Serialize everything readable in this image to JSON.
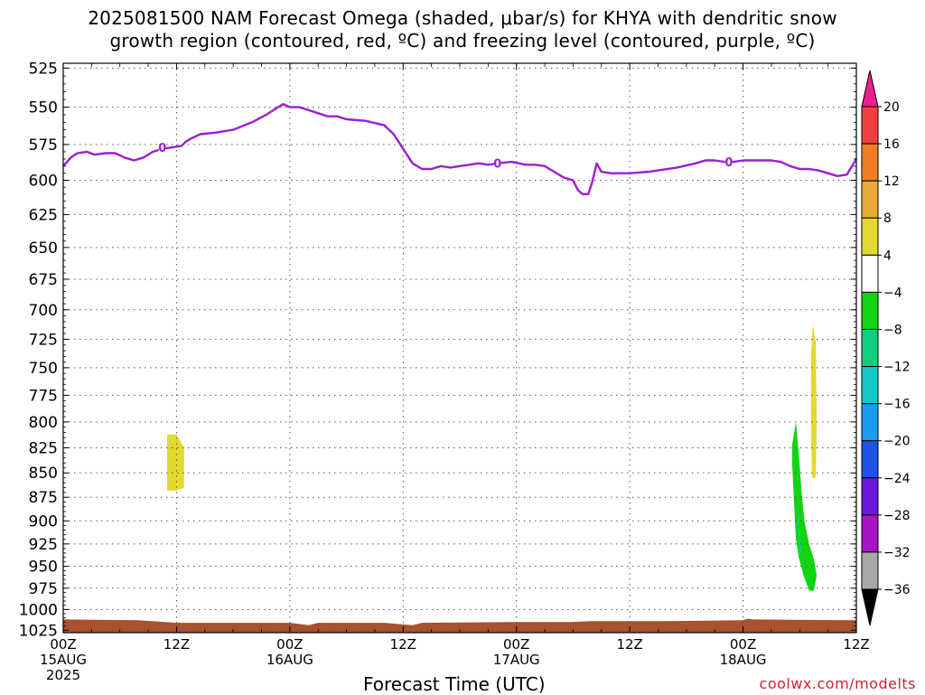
{
  "title_line1": "2025081500 NAM Forecast Omega (shaded, μbar/s) for KHYA with dendritic snow",
  "title_line2": "growth region (contoured, red, ºC) and freezing level (contoured, purple, ºC)",
  "xaxis_title": "Forecast Time (UTC)",
  "credit": "coolwx.com/modelts",
  "chart_data": {
    "type": "time-height",
    "y_axis": {
      "ticks": [
        525,
        550,
        575,
        600,
        625,
        650,
        675,
        700,
        725,
        750,
        775,
        800,
        825,
        850,
        875,
        900,
        925,
        950,
        975,
        1000,
        1025
      ],
      "scale": "log-pressure",
      "range": [
        522,
        1028
      ]
    },
    "x_axis": {
      "range_hours": [
        0,
        84
      ],
      "ticks": [
        {
          "h": 0,
          "l1": "00Z",
          "l2": "15AUG",
          "l3": "2025"
        },
        {
          "h": 12,
          "l1": "12Z",
          "l2": "",
          "l3": ""
        },
        {
          "h": 24,
          "l1": "00Z",
          "l2": "16AUG",
          "l3": ""
        },
        {
          "h": 36,
          "l1": "12Z",
          "l2": "",
          "l3": ""
        },
        {
          "h": 48,
          "l1": "00Z",
          "l2": "17AUG",
          "l3": ""
        },
        {
          "h": 60,
          "l1": "12Z",
          "l2": "",
          "l3": ""
        },
        {
          "h": 72,
          "l1": "00Z",
          "l2": "18AUG",
          "l3": ""
        },
        {
          "h": 84,
          "l1": "12Z",
          "l2": "",
          "l3": ""
        }
      ]
    },
    "grid": true,
    "colorbar": {
      "labels": [
        "20",
        "16",
        "12",
        "8",
        "4",
        "−4",
        "−8",
        "−12",
        "−16",
        "−20",
        "−24",
        "−28",
        "−32",
        "−36"
      ],
      "colors": [
        "#ec1f8e",
        "#f23e3e",
        "#f07d26",
        "#e9a935",
        "#e4d92e",
        "#ffffff",
        "#12d412",
        "#10d080",
        "#12c8c8",
        "#1a9cf0",
        "#1c54e6",
        "#6a18dc",
        "#a813c6",
        "#a8a8a8",
        "#000000"
      ]
    },
    "freezing_level": {
      "label": "0",
      "color": "#9b1fd0",
      "points": [
        [
          0,
          590
        ],
        [
          0.8,
          584
        ],
        [
          1.5,
          581
        ],
        [
          2.5,
          580
        ],
        [
          3.3,
          582
        ],
        [
          4.5,
          581
        ],
        [
          5.5,
          581
        ],
        [
          6.5,
          584
        ],
        [
          7.5,
          586
        ],
        [
          8.5,
          584
        ],
        [
          9.5,
          580
        ],
        [
          10.5,
          578
        ],
        [
          11.5,
          577
        ],
        [
          12.5,
          576
        ],
        [
          13,
          573
        ],
        [
          13.5,
          571
        ],
        [
          14.5,
          568
        ],
        [
          16,
          567
        ],
        [
          18,
          565
        ],
        [
          20,
          560
        ],
        [
          21.5,
          555
        ],
        [
          22.5,
          551
        ],
        [
          23.3,
          548
        ],
        [
          24,
          550
        ],
        [
          25,
          550
        ],
        [
          26,
          552
        ],
        [
          27,
          554
        ],
        [
          28,
          556
        ],
        [
          29,
          556
        ],
        [
          30,
          558
        ],
        [
          32,
          559
        ],
        [
          34,
          562
        ],
        [
          35,
          568
        ],
        [
          36,
          578
        ],
        [
          37,
          588
        ],
        [
          38,
          592
        ],
        [
          39,
          592
        ],
        [
          40,
          590
        ],
        [
          41,
          591
        ],
        [
          42,
          590
        ],
        [
          43,
          589
        ],
        [
          44,
          588
        ],
        [
          45,
          589
        ],
        [
          46,
          588
        ],
        [
          47.5,
          587
        ],
        [
          49,
          589
        ],
        [
          50,
          589
        ],
        [
          51,
          590
        ],
        [
          52,
          594
        ],
        [
          53,
          598
        ],
        [
          54,
          600
        ],
        [
          54.5,
          607
        ],
        [
          55,
          610
        ],
        [
          55.6,
          610
        ],
        [
          56,
          602
        ],
        [
          56.5,
          588
        ],
        [
          57,
          594
        ],
        [
          58,
          595
        ],
        [
          59,
          595
        ],
        [
          60,
          595
        ],
        [
          62,
          594
        ],
        [
          63,
          593
        ],
        [
          65,
          591
        ],
        [
          67,
          588
        ],
        [
          68,
          586
        ],
        [
          69,
          586
        ],
        [
          70,
          587
        ],
        [
          71,
          587
        ],
        [
          72,
          586
        ],
        [
          73,
          586
        ],
        [
          75,
          586
        ],
        [
          76,
          587
        ],
        [
          77,
          590
        ],
        [
          78,
          592
        ],
        [
          79,
          592
        ],
        [
          80,
          593
        ],
        [
          81,
          595
        ],
        [
          82,
          597
        ],
        [
          83,
          596
        ],
        [
          84,
          585
        ]
      ]
    },
    "shaded_regions": [
      {
        "value_band": "4 to 8",
        "color": "#e4d92e",
        "points": [
          [
            11,
            812
          ],
          [
            12,
            812
          ],
          [
            12.8,
            825
          ],
          [
            12.8,
            865
          ],
          [
            12,
            868
          ],
          [
            11,
            868
          ]
        ]
      },
      {
        "value_band": "4 to 8",
        "color": "#e4d92e",
        "points": [
          [
            79.4,
            712
          ],
          [
            79.7,
            728
          ],
          [
            79.8,
            800
          ],
          [
            79.7,
            855
          ],
          [
            79.3,
            855
          ],
          [
            79.2,
            800
          ],
          [
            79.2,
            740
          ]
        ]
      },
      {
        "value_band": "-4 to -8",
        "color": "#12d412",
        "points": [
          [
            77.6,
            800
          ],
          [
            77.9,
            830
          ],
          [
            78.2,
            870
          ],
          [
            78.5,
            900
          ],
          [
            79,
            925
          ],
          [
            79.5,
            942
          ],
          [
            79.8,
            960
          ],
          [
            79.5,
            978
          ],
          [
            79,
            978
          ],
          [
            78.4,
            960
          ],
          [
            77.9,
            940
          ],
          [
            77.6,
            920
          ],
          [
            77.4,
            880
          ],
          [
            77.2,
            840
          ],
          [
            77.2,
            822
          ]
        ]
      },
      {
        "value_band": "-8 to -12",
        "color": "#10d080",
        "points": [
          [
            77.8,
            880
          ],
          [
            78,
            910
          ],
          [
            78.2,
            935
          ],
          [
            78,
            935
          ],
          [
            77.8,
            905
          ]
        ]
      }
    ],
    "terrain": {
      "color": "#a8522e",
      "surface_pressure": [
        [
          0,
          1012
        ],
        [
          8,
          1013
        ],
        [
          12,
          1016
        ],
        [
          24,
          1016
        ],
        [
          26,
          1019
        ],
        [
          27,
          1016
        ],
        [
          34,
          1016
        ],
        [
          36,
          1018
        ],
        [
          37,
          1019
        ],
        [
          38,
          1016
        ],
        [
          48,
          1015
        ],
        [
          54,
          1015
        ],
        [
          56,
          1014
        ],
        [
          64,
          1014
        ],
        [
          72,
          1013
        ],
        [
          72.5,
          1011
        ],
        [
          73,
          1012
        ],
        [
          84,
          1013
        ]
      ]
    }
  }
}
